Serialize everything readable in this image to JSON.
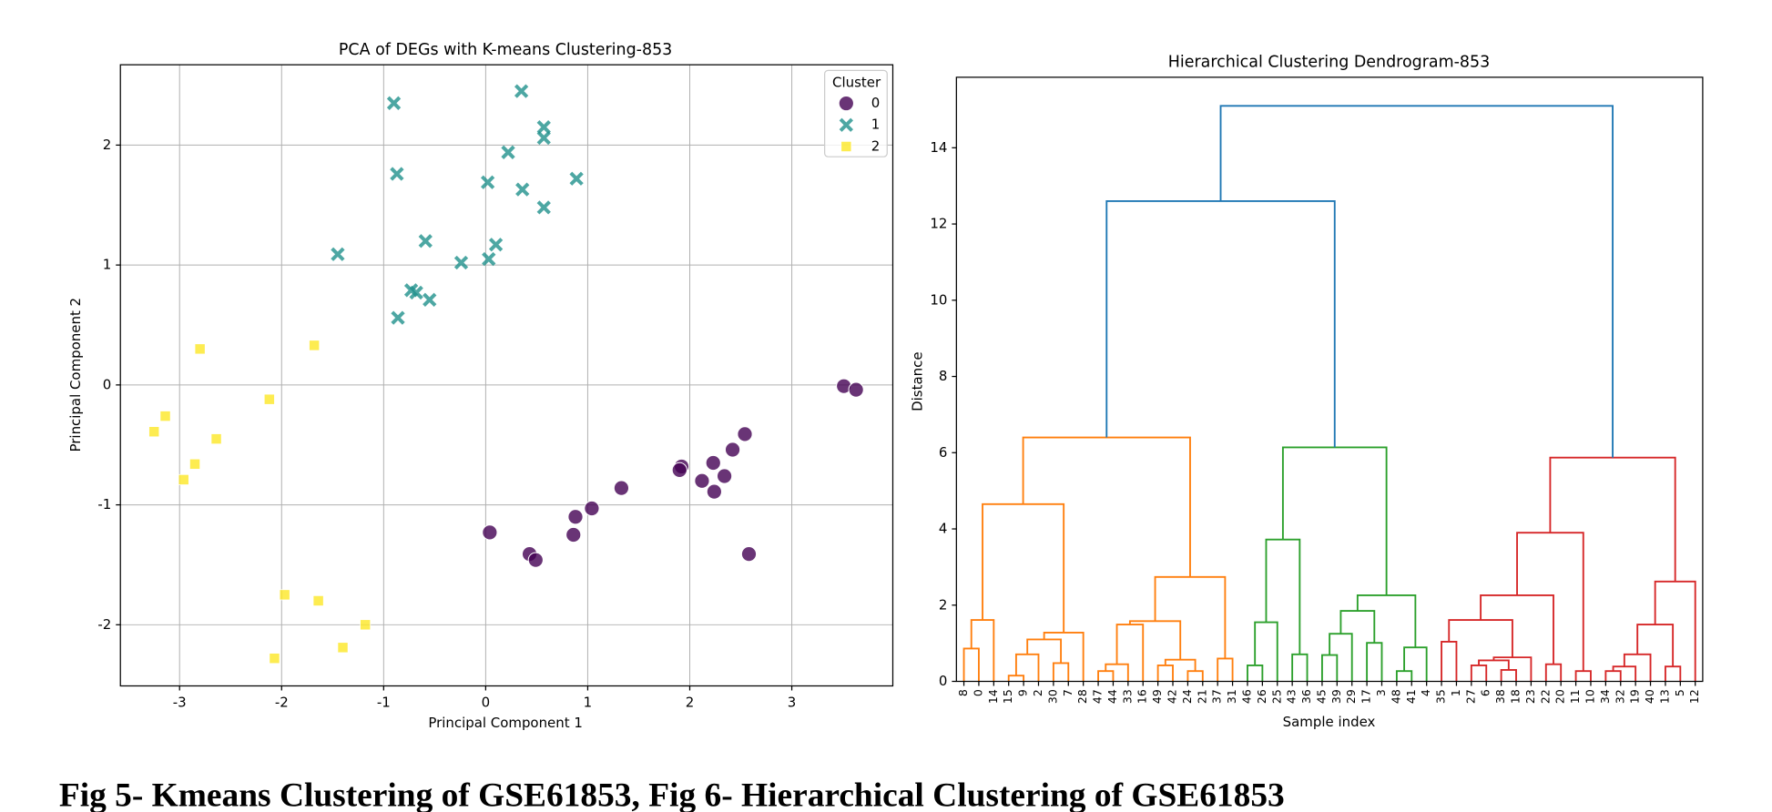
{
  "caption": "Fig 5- Kmeans Clustering of GSE61853, Fig 6- Hierarchical Clustering of GSE61853",
  "chart_data": [
    {
      "type": "scatter",
      "title": "PCA of DEGs with K-means Clustering-853",
      "xlabel": "Principal Component 1",
      "ylabel": "Principal Component 2",
      "xlim": [
        -3.58,
        3.99
      ],
      "ylim": [
        -2.51,
        2.67
      ],
      "xticks": [
        -3,
        -2,
        -1,
        0,
        1,
        2,
        3
      ],
      "yticks": [
        -2,
        -1,
        0,
        1,
        2
      ],
      "grid": true,
      "legend": {
        "title": "Cluster",
        "loc": "upper right"
      },
      "series": [
        {
          "name": "0",
          "color": "#440154",
          "marker": "circle",
          "x": [
            3.51,
            3.63,
            2.54,
            2.42,
            2.23,
            2.34,
            2.12,
            2.24,
            1.92,
            1.9,
            1.33,
            1.04,
            0.88,
            0.86,
            0.04,
            0.43,
            0.49,
            2.58
          ],
          "y": [
            -0.01,
            -0.04,
            -0.41,
            -0.54,
            -0.65,
            -0.76,
            -0.8,
            -0.89,
            -0.68,
            -0.71,
            -0.86,
            -1.03,
            -1.1,
            -1.25,
            -1.23,
            -1.41,
            -1.46,
            -1.41
          ]
        },
        {
          "name": "1",
          "color": "#21918c",
          "marker": "x",
          "x": [
            -0.9,
            0.35,
            0.57,
            0.57,
            0.22,
            -0.87,
            0.89,
            0.02,
            0.36,
            0.57,
            -0.59,
            0.1,
            -1.45,
            -0.24,
            0.03,
            -0.73,
            -0.68,
            -0.55,
            -0.86
          ],
          "y": [
            2.35,
            2.45,
            2.15,
            2.06,
            1.94,
            1.76,
            1.72,
            1.69,
            1.63,
            1.48,
            1.2,
            1.17,
            1.09,
            1.02,
            1.05,
            0.79,
            0.77,
            0.71,
            0.56
          ]
        },
        {
          "name": "2",
          "color": "#fde725",
          "marker": "square",
          "x": [
            -2.8,
            -1.68,
            -2.12,
            -3.14,
            -3.25,
            -2.64,
            -2.85,
            -2.96,
            -1.97,
            -1.64,
            -1.18,
            -1.4,
            -2.07
          ],
          "y": [
            0.3,
            0.33,
            -0.12,
            -0.26,
            -0.39,
            -0.45,
            -0.66,
            -0.79,
            -1.75,
            -1.8,
            -2.0,
            -2.19,
            -2.28
          ]
        }
      ]
    },
    {
      "type": "dendrogram",
      "title": "Hierarchical Clustering Dendrogram-853",
      "xlabel": "Sample index",
      "ylabel": "Distance",
      "ylim": [
        0,
        15.85
      ],
      "yticks": [
        0,
        2,
        4,
        6,
        8,
        10,
        12,
        14
      ],
      "leaves": [
        "8",
        "0",
        "14",
        "15",
        "9",
        "2",
        "30",
        "7",
        "28",
        "47",
        "44",
        "33",
        "16",
        "49",
        "42",
        "24",
        "21",
        "37",
        "31",
        "46",
        "26",
        "25",
        "43",
        "36",
        "45",
        "39",
        "29",
        "17",
        "3",
        "48",
        "41",
        "4",
        "35",
        "1",
        "27",
        "6",
        "38",
        "18",
        "23",
        "22",
        "20",
        "11",
        "10",
        "34",
        "32",
        "19",
        "40",
        "13",
        "5",
        "12"
      ],
      "links": [
        {
          "children": [
            0,
            1
          ],
          "height": 0.86,
          "color": "#ff7f0e"
        },
        {
          "children": [
            50,
            2
          ],
          "height": 1.61,
          "color": "#ff7f0e"
        },
        {
          "children": [
            3,
            4
          ],
          "height": 0.15,
          "color": "#ff7f0e"
        },
        {
          "children": [
            52,
            5
          ],
          "height": 0.71,
          "color": "#ff7f0e"
        },
        {
          "children": [
            6,
            7
          ],
          "height": 0.48,
          "color": "#ff7f0e"
        },
        {
          "children": [
            53,
            54
          ],
          "height": 1.1,
          "color": "#ff7f0e"
        },
        {
          "children": [
            55,
            8
          ],
          "height": 1.28,
          "color": "#ff7f0e"
        },
        {
          "children": [
            51,
            56
          ],
          "height": 4.65,
          "color": "#ff7f0e"
        },
        {
          "children": [
            9,
            10
          ],
          "height": 0.27,
          "color": "#ff7f0e"
        },
        {
          "children": [
            58,
            11
          ],
          "height": 0.45,
          "color": "#ff7f0e"
        },
        {
          "children": [
            59,
            12
          ],
          "height": 1.49,
          "color": "#ff7f0e"
        },
        {
          "children": [
            13,
            14
          ],
          "height": 0.42,
          "color": "#ff7f0e"
        },
        {
          "children": [
            15,
            16
          ],
          "height": 0.27,
          "color": "#ff7f0e"
        },
        {
          "children": [
            61,
            62
          ],
          "height": 0.57,
          "color": "#ff7f0e"
        },
        {
          "children": [
            60,
            63
          ],
          "height": 1.58,
          "color": "#ff7f0e"
        },
        {
          "children": [
            17,
            18
          ],
          "height": 0.6,
          "color": "#ff7f0e"
        },
        {
          "children": [
            64,
            65
          ],
          "height": 2.74,
          "color": "#ff7f0e"
        },
        {
          "children": [
            57,
            66
          ],
          "height": 6.4,
          "color": "#ff7f0e"
        },
        {
          "children": [
            19,
            20
          ],
          "height": 0.42,
          "color": "#2ca02c"
        },
        {
          "children": [
            68,
            21
          ],
          "height": 1.55,
          "color": "#2ca02c"
        },
        {
          "children": [
            22,
            23
          ],
          "height": 0.71,
          "color": "#2ca02c"
        },
        {
          "children": [
            69,
            70
          ],
          "height": 3.72,
          "color": "#2ca02c"
        },
        {
          "children": [
            24,
            25
          ],
          "height": 0.69,
          "color": "#2ca02c"
        },
        {
          "children": [
            72,
            26
          ],
          "height": 1.25,
          "color": "#2ca02c"
        },
        {
          "children": [
            27,
            28
          ],
          "height": 1.01,
          "color": "#2ca02c"
        },
        {
          "children": [
            73,
            74
          ],
          "height": 1.85,
          "color": "#2ca02c"
        },
        {
          "children": [
            29,
            30
          ],
          "height": 0.27,
          "color": "#2ca02c"
        },
        {
          "children": [
            76,
            31
          ],
          "height": 0.89,
          "color": "#2ca02c"
        },
        {
          "children": [
            75,
            77
          ],
          "height": 2.26,
          "color": "#2ca02c"
        },
        {
          "children": [
            71,
            78
          ],
          "height": 6.14,
          "color": "#2ca02c"
        },
        {
          "children": [
            32,
            33
          ],
          "height": 1.04,
          "color": "#d62728"
        },
        {
          "children": [
            34,
            35
          ],
          "height": 0.42,
          "color": "#d62728"
        },
        {
          "children": [
            36,
            37
          ],
          "height": 0.3,
          "color": "#d62728"
        },
        {
          "children": [
            81,
            82
          ],
          "height": 0.55,
          "color": "#d62728"
        },
        {
          "children": [
            83,
            38
          ],
          "height": 0.63,
          "color": "#d62728"
        },
        {
          "children": [
            80,
            84
          ],
          "height": 1.61,
          "color": "#d62728"
        },
        {
          "children": [
            39,
            40
          ],
          "height": 0.45,
          "color": "#d62728"
        },
        {
          "children": [
            85,
            86
          ],
          "height": 2.26,
          "color": "#d62728"
        },
        {
          "children": [
            41,
            42
          ],
          "height": 0.27,
          "color": "#d62728"
        },
        {
          "children": [
            87,
            88
          ],
          "height": 3.9,
          "color": "#d62728"
        },
        {
          "children": [
            43,
            44
          ],
          "height": 0.27,
          "color": "#d62728"
        },
        {
          "children": [
            90,
            45
          ],
          "height": 0.39,
          "color": "#d62728"
        },
        {
          "children": [
            91,
            46
          ],
          "height": 0.71,
          "color": "#d62728"
        },
        {
          "children": [
            47,
            48
          ],
          "height": 0.39,
          "color": "#d62728"
        },
        {
          "children": [
            92,
            93
          ],
          "height": 1.49,
          "color": "#d62728"
        },
        {
          "children": [
            94,
            49
          ],
          "height": 2.62,
          "color": "#d62728"
        },
        {
          "children": [
            89,
            95
          ],
          "height": 5.87,
          "color": "#d62728"
        },
        {
          "children": [
            67,
            79
          ],
          "height": 12.6,
          "color": "#1f77b4"
        },
        {
          "children": [
            97,
            96
          ],
          "height": 15.1,
          "color": "#1f77b4"
        }
      ]
    }
  ]
}
